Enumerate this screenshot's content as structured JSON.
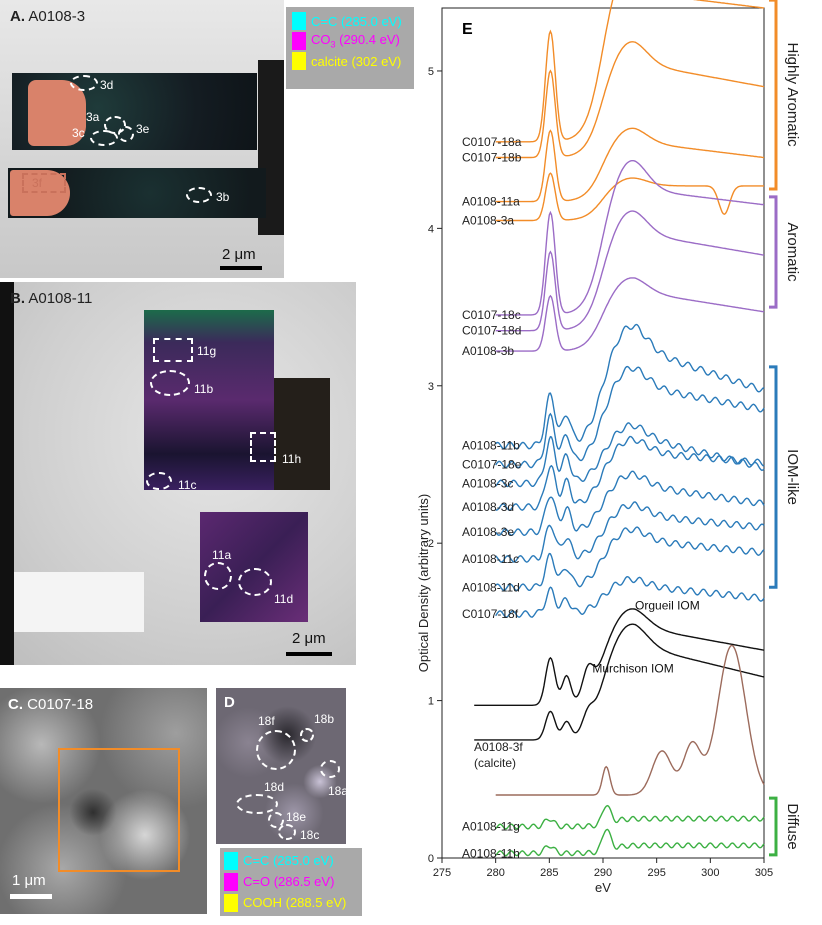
{
  "panelA": {
    "letter": "A.",
    "sample": "A0108-3",
    "labels": {
      "d3": "3d",
      "a3": "3a",
      "c3": "3c",
      "e3": "3e",
      "f3": "3f",
      "b3": "3b"
    },
    "scale": "2 μm"
  },
  "legendTop": {
    "items": [
      {
        "sub": "C=C (285.0 eV)",
        "color": "#00ffff"
      },
      {
        "sub": "CO",
        "sub2": "3",
        "sub3": " (290.4 eV)",
        "color": "#ff00ff"
      },
      {
        "sub": "calcite (302 eV)",
        "color": "#ffff00"
      }
    ]
  },
  "panelB": {
    "letter": "B.",
    "sample": "A0108-11",
    "labels": {
      "g": "11g",
      "b": "11b",
      "h": "11h",
      "c": "11c",
      "a": "11a",
      "d": "11d"
    },
    "scale": "2 μm"
  },
  "panelC": {
    "letter": "C.",
    "sample": "C0107-18",
    "scale": "1 μm"
  },
  "panelD": {
    "letter": "D",
    "labels": {
      "f": "18f",
      "b": "18b",
      "a": "18a",
      "d": "18d",
      "e": "18e",
      "c": "18c"
    }
  },
  "legendBottom": {
    "items": [
      {
        "text": "C=C (285.0 eV)",
        "color": "#00ffff"
      },
      {
        "text": "C=O (286.5 eV)",
        "color": "#ff00ff"
      },
      {
        "text": "COOH (288.5 eV)",
        "color": "#ffff00"
      }
    ]
  },
  "panelE": {
    "letter": "E",
    "ylabel": "Optical Density (arbitrary units)",
    "xlabel": "eV",
    "groups": [
      {
        "label": "Highly Aromatic",
        "color": "#f28c28"
      },
      {
        "label": "Aromatic",
        "color": "#9b6cc6"
      },
      {
        "label": "IOM-like",
        "color": "#2b7bba"
      },
      {
        "label": "Diffuse",
        "color": "#3cb043"
      }
    ]
  },
  "chart_data": {
    "type": "line",
    "xlabel": "eV",
    "ylabel": "Optical Density (arbitrary units)",
    "xlim": [
      275,
      305
    ],
    "ylim": [
      0,
      5.4
    ],
    "xticks": [
      275,
      280,
      285,
      290,
      295,
      300,
      305
    ],
    "yticks": [
      0,
      1,
      2,
      3,
      4,
      5
    ],
    "series": [
      {
        "name": "C0107-18a",
        "group": "Highly Aromatic",
        "color": "#f28c28",
        "base": 4.55,
        "kind": "aro",
        "peak": 0.7,
        "amp": 0.95,
        "end": 0.85
      },
      {
        "name": "C0107-18b",
        "group": "Highly Aromatic",
        "color": "#f28c28",
        "base": 4.45,
        "kind": "aro",
        "peak": 0.55,
        "amp": 0.6,
        "end": 0.45
      },
      {
        "name": "A0108-11a",
        "group": "Highly Aromatic",
        "color": "#f28c28",
        "base": 4.17,
        "kind": "aro",
        "peak": 0.45,
        "amp": 0.38,
        "end": 0.28
      },
      {
        "name": "A0108-3a",
        "group": "Highly Aromatic",
        "color": "#f28c28",
        "base": 4.05,
        "kind": "aroDip",
        "peak": 0.3,
        "amp": 0.22,
        "end": 0.22
      },
      {
        "name": "C0107-18c",
        "group": "Aromatic",
        "color": "#9b6cc6",
        "base": 3.45,
        "kind": "aro",
        "peak": 0.65,
        "amp": 0.8,
        "end": 0.7
      },
      {
        "name": "C0107-18d",
        "group": "Aromatic",
        "color": "#9b6cc6",
        "base": 3.35,
        "kind": "aro",
        "peak": 0.5,
        "amp": 0.62,
        "end": 0.48
      },
      {
        "name": "A0108-3b",
        "group": "Aromatic",
        "color": "#9b6cc6",
        "base": 3.22,
        "kind": "aro",
        "peak": 0.35,
        "amp": 0.38,
        "end": 0.25
      },
      {
        "name": "A0108-11b",
        "group": "IOM-like",
        "color": "#2b7bba",
        "base": 2.62,
        "kind": "iom",
        "peak": 0.32,
        "amp": 0.62,
        "end": 0.35
      },
      {
        "name": "C0107-18e",
        "group": "IOM-like",
        "color": "#2b7bba",
        "base": 2.5,
        "kind": "iom",
        "peak": 0.3,
        "amp": 0.5,
        "end": 0.35
      },
      {
        "name": "A0108-3c",
        "group": "IOM-like",
        "color": "#2b7bba",
        "base": 2.38,
        "kind": "iom",
        "peak": 0.28,
        "amp": 0.3,
        "end": 0.1
      },
      {
        "name": "A0108-3d",
        "group": "IOM-like",
        "color": "#2b7bba",
        "base": 2.23,
        "kind": "iom",
        "peak": 0.26,
        "amp": 0.35,
        "end": 0.28
      },
      {
        "name": "A0108-3e",
        "group": "IOM-like",
        "color": "#2b7bba",
        "base": 2.07,
        "kind": "iom",
        "peak": 0.24,
        "amp": 0.3,
        "end": 0.18
      },
      {
        "name": "A0108-11c",
        "group": "IOM-like",
        "color": "#2b7bba",
        "base": 1.9,
        "kind": "iom",
        "peak": 0.22,
        "amp": 0.28,
        "end": 0.2
      },
      {
        "name": "A0108-11d",
        "group": "IOM-like",
        "color": "#2b7bba",
        "base": 1.72,
        "kind": "iom",
        "peak": 0.2,
        "amp": 0.3,
        "end": 0.22
      },
      {
        "name": "C0107-18f",
        "group": "IOM-like",
        "color": "#2b7bba",
        "base": 1.55,
        "kind": "iom",
        "peak": 0.15,
        "amp": 0.18,
        "end": 0.1
      },
      {
        "name": "Orgueil IOM",
        "group": "reference",
        "color": "#111111",
        "base": 0.97,
        "kind": "ref",
        "peak": 0.3,
        "amp": 0.5,
        "end": 0.35
      },
      {
        "name": "Murchison IOM",
        "group": "reference",
        "color": "#111111",
        "base": 0.75,
        "kind": "ref",
        "peak": 0.18,
        "amp": 0.6,
        "end": 0.4
      },
      {
        "name": "A0108-3f (calcite)",
        "group": "calcite",
        "color": "#9c6b5c",
        "base": 0.4,
        "kind": "calcite",
        "peak": 0.18,
        "amp": 0.0,
        "end": 0.0
      },
      {
        "name": "A0108-11g",
        "group": "Diffuse",
        "color": "#3cb043",
        "base": 0.2,
        "kind": "diffuse",
        "peak": 0.12,
        "amp": 0.05,
        "end": 0.0
      },
      {
        "name": "A0108-11h",
        "group": "Diffuse",
        "color": "#3cb043",
        "base": 0.03,
        "kind": "diffuse",
        "peak": 0.14,
        "amp": 0.05,
        "end": 0.0
      }
    ],
    "annotations": [
      "Orgueil IOM",
      "Murchison IOM"
    ]
  }
}
